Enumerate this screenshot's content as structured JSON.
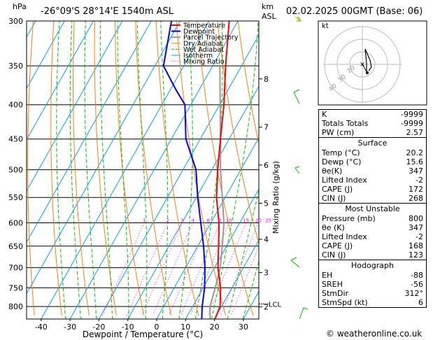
{
  "header": {
    "hpa_label": "hPa",
    "location": "-26°09'S 28°14'E 1540m ASL",
    "km_label": "km",
    "asl_label": "ASL",
    "datetime": "02.02.2025 00GMT (Base: 06)"
  },
  "legend": {
    "items": [
      {
        "label": "Temperature",
        "color": "#ff0000"
      },
      {
        "label": "Dewpoint",
        "color": "#0000ff"
      },
      {
        "label": "Parcel Trajectory",
        "color": "#999999"
      },
      {
        "label": "Dry Adiabat",
        "color": "#ff8000"
      },
      {
        "label": "Wet Adiabat",
        "color": "#00c000"
      },
      {
        "label": "Isotherm",
        "color": "#00a0ff"
      },
      {
        "label": "Mixing Ratio",
        "color": "#ff00ff"
      }
    ]
  },
  "chart_data": {
    "type": "skew-t",
    "xlabel": "Dewpoint / Temperature (°C)",
    "y_right_label": "Mixing Ratio (g/kg)",
    "x_ticks": [
      -40,
      -30,
      -20,
      -10,
      0,
      10,
      20,
      30
    ],
    "pressure_levels": [
      300,
      350,
      400,
      450,
      500,
      550,
      600,
      650,
      700,
      750,
      800
    ],
    "km_ticks": [
      {
        "label": "8",
        "p": 366
      },
      {
        "label": "7",
        "p": 432
      },
      {
        "label": "6",
        "p": 492
      },
      {
        "label": "5",
        "p": 561
      },
      {
        "label": "4",
        "p": 635
      },
      {
        "label": "3",
        "p": 712
      },
      {
        "label": "2",
        "p": 801
      }
    ],
    "lcl": {
      "label": "LCL",
      "p": 793
    },
    "mixing_ratio_labels": [
      "1",
      "2",
      "3",
      "4",
      "6",
      "8",
      "10",
      "15",
      "20",
      "25"
    ],
    "temperature": [
      {
        "p": 835,
        "t": 20.2
      },
      {
        "p": 800,
        "t": 19.5
      },
      {
        "p": 750,
        "t": 16.0
      },
      {
        "p": 700,
        "t": 11.2
      },
      {
        "p": 650,
        "t": 7.2
      },
      {
        "p": 600,
        "t": 2.8
      },
      {
        "p": 550,
        "t": -3.0
      },
      {
        "p": 500,
        "t": -8.0
      },
      {
        "p": 450,
        "t": -13.0
      },
      {
        "p": 400,
        "t": -18.5
      },
      {
        "p": 350,
        "t": -25.5
      },
      {
        "p": 300,
        "t": -33.0
      }
    ],
    "dewpoint": [
      {
        "p": 835,
        "t": 15.6
      },
      {
        "p": 800,
        "t": 13.3
      },
      {
        "p": 750,
        "t": 10.5
      },
      {
        "p": 700,
        "t": 6.7
      },
      {
        "p": 650,
        "t": 2.0
      },
      {
        "p": 600,
        "t": -3.5
      },
      {
        "p": 550,
        "t": -9.5
      },
      {
        "p": 500,
        "t": -15.5
      },
      {
        "p": 450,
        "t": -25.0
      },
      {
        "p": 400,
        "t": -32.0
      },
      {
        "p": 380,
        "t": -38.0
      },
      {
        "p": 350,
        "t": -47.0
      },
      {
        "p": 300,
        "t": -53.0
      }
    ],
    "parcel": [
      {
        "p": 835,
        "t": 18.5
      },
      {
        "p": 800,
        "t": 16.0
      },
      {
        "p": 750,
        "t": 14.2
      },
      {
        "p": 700,
        "t": 12.0
      },
      {
        "p": 650,
        "t": 8.5
      },
      {
        "p": 600,
        "t": 4.5
      },
      {
        "p": 550,
        "t": -1.0
      },
      {
        "p": 500,
        "t": -7.0
      },
      {
        "p": 450,
        "t": -13.0
      },
      {
        "p": 400,
        "t": -19.8
      },
      {
        "p": 350,
        "t": -27.5
      }
    ]
  },
  "hodograph": {
    "label": "kt",
    "ring_labels": [
      "40",
      "30",
      "20"
    ]
  },
  "indices": [
    {
      "label": "K",
      "value": "-9999"
    },
    {
      "label": "Totals Totals",
      "value": "-9999"
    },
    {
      "label": "PW (cm)",
      "value": "2.57"
    }
  ],
  "surface": {
    "title": "Surface",
    "rows": [
      {
        "label": "Temp (°C)",
        "value": "20.2"
      },
      {
        "label": "Dewp (°C)",
        "value": "15.6"
      },
      {
        "label": "θe(K)",
        "value": "347"
      },
      {
        "label": "Lifted Index",
        "value": "-2"
      },
      {
        "label": "CAPE (J)",
        "value": "172"
      },
      {
        "label": "CIN (J)",
        "value": "268"
      }
    ]
  },
  "most_unstable": {
    "title": "Most Unstable",
    "rows": [
      {
        "label": "Pressure (mb)",
        "value": "800"
      },
      {
        "label": "θe (K)",
        "value": "347"
      },
      {
        "label": "Lifted Index",
        "value": "-2"
      },
      {
        "label": "CAPE (J)",
        "value": "168"
      },
      {
        "label": "CIN (J)",
        "value": "123"
      }
    ]
  },
  "hodograph_table": {
    "title": "Hodograph",
    "rows": [
      {
        "label": "EH",
        "value": "-88"
      },
      {
        "label": "SREH",
        "value": "-56"
      },
      {
        "label": "StmDir",
        "value": "312°"
      },
      {
        "label": "StmSpd (kt)",
        "value": "6"
      }
    ]
  },
  "footer": {
    "copyright": "© weatheronline.co.uk"
  }
}
